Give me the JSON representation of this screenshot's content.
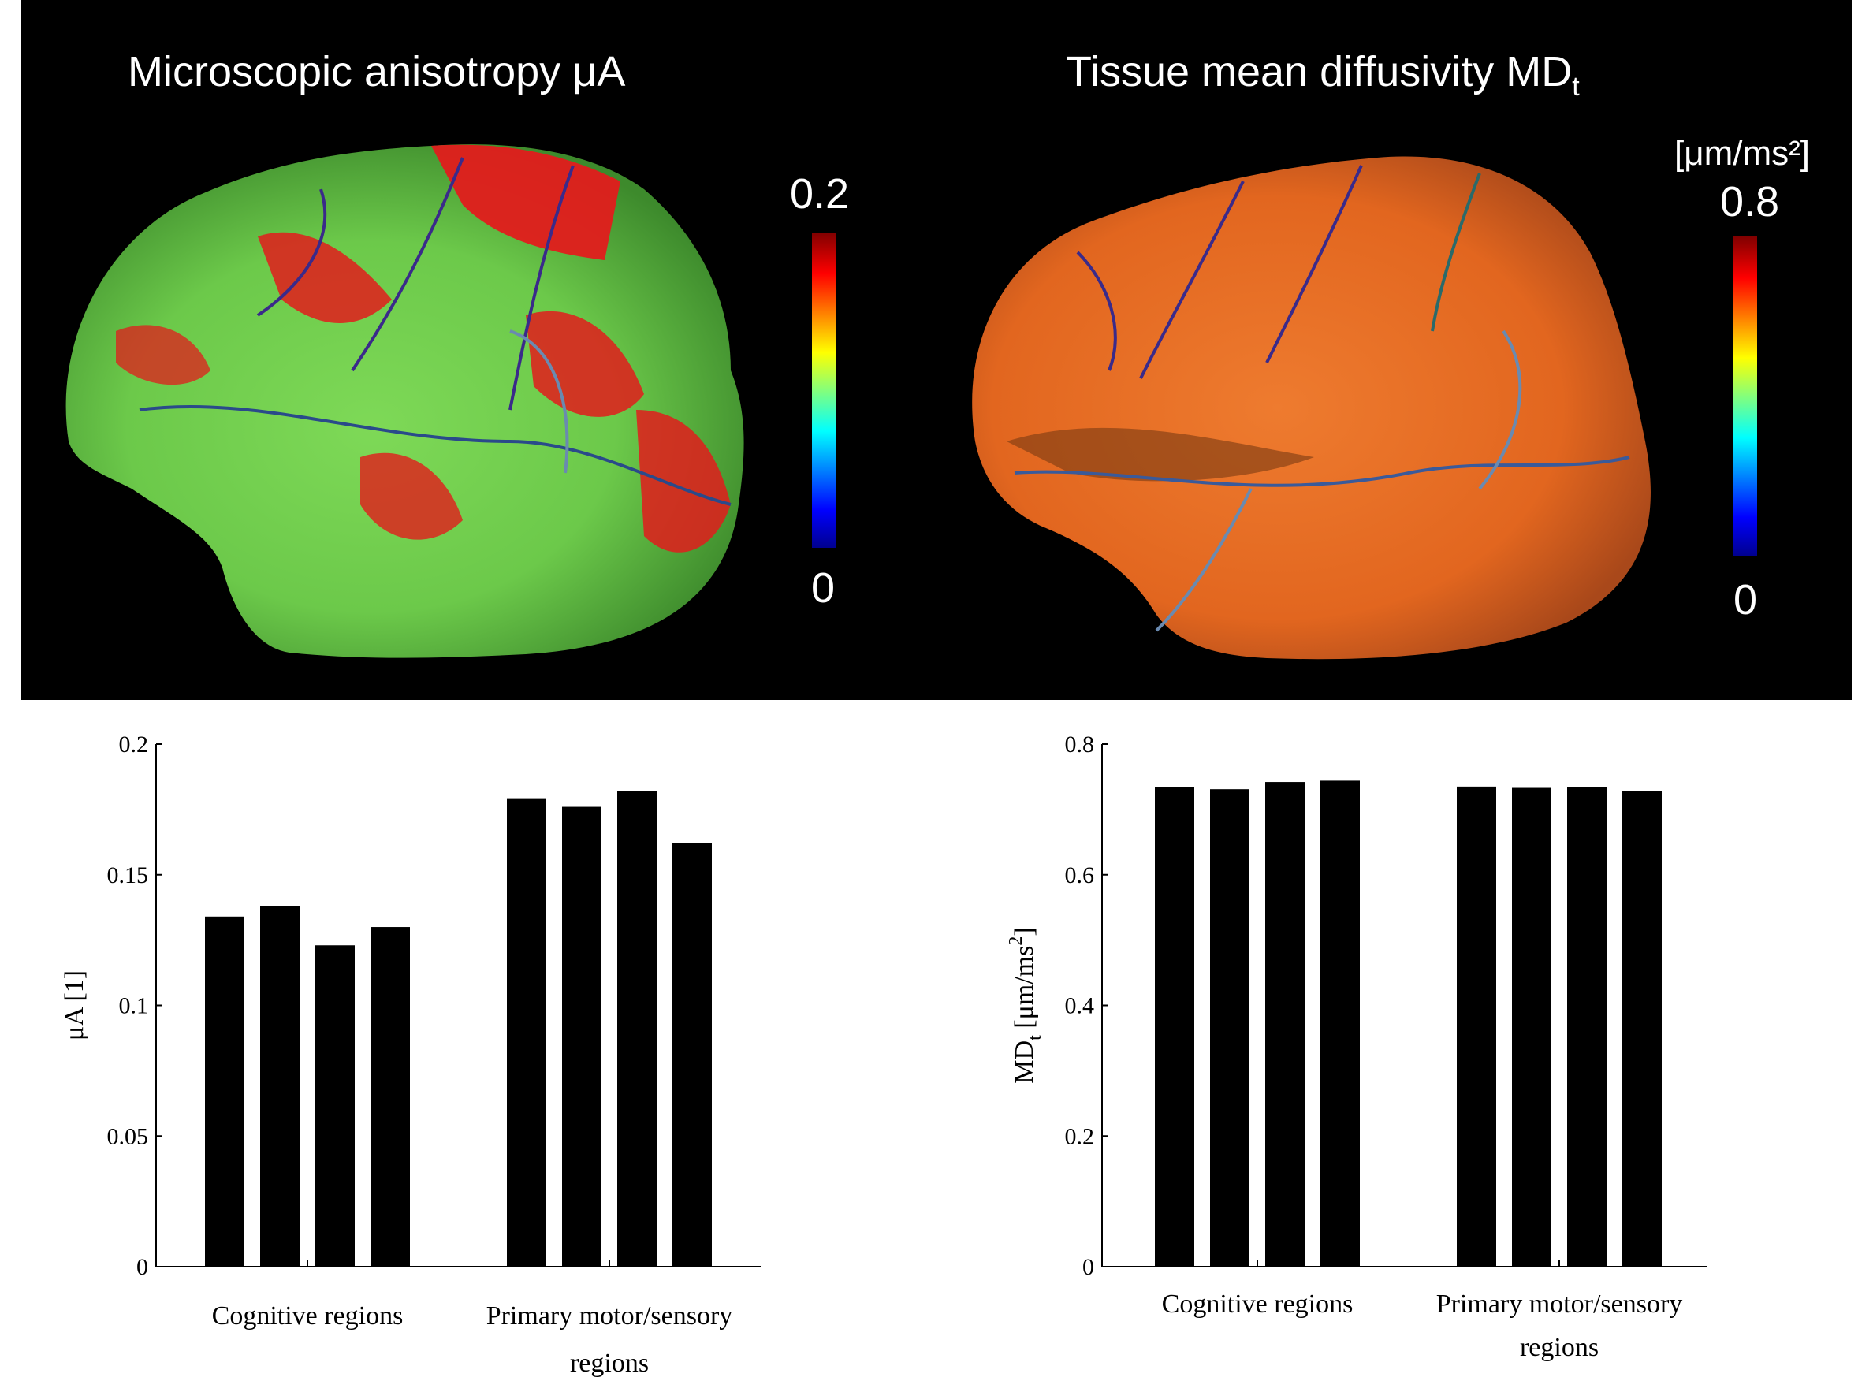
{
  "panels": {
    "left_title": "Microscopic anisotropy μA",
    "right_title_main": "Tissue mean diffusivity MD",
    "right_title_sub": "t",
    "left_colorbar": {
      "max_label": "0.2",
      "min_label": "0"
    },
    "right_colorbar": {
      "unit_label": "[μm/ms²]",
      "max_label": "0.8",
      "min_label": "0"
    }
  },
  "chart_data": [
    {
      "type": "bar",
      "title": "",
      "categories": [
        "Cognitive regions",
        "Primary motor/sensory regions"
      ],
      "category_lines": [
        [
          "Cognitive regions"
        ],
        [
          "Primary motor/sensory",
          "regions"
        ]
      ],
      "values": [
        [
          0.134,
          0.138,
          0.123,
          0.13
        ],
        [
          0.179,
          0.176,
          0.182,
          0.162
        ]
      ],
      "ylabel": "μA [1]",
      "ylim": [
        0,
        0.2
      ],
      "yticks": [
        0,
        0.05,
        0.1,
        0.15,
        0.2
      ],
      "ytick_labels": [
        "0",
        "0.05",
        "0.1",
        "0.15",
        "0.2"
      ],
      "bar_color": "#000000"
    },
    {
      "type": "bar",
      "title": "",
      "categories": [
        "Cognitive regions",
        "Primary motor/sensory regions"
      ],
      "category_lines": [
        [
          "Cognitive regions"
        ],
        [
          "Primary motor/sensory",
          "regions"
        ]
      ],
      "values": [
        [
          0.734,
          0.731,
          0.742,
          0.744
        ],
        [
          0.735,
          0.733,
          0.734,
          0.728
        ]
      ],
      "ylabel_main": "MD",
      "ylabel_sub": "t",
      "ylabel_unit": " [μm/ms",
      "ylabel_sup": "2",
      "ylabel_close": "]",
      "ylim": [
        0,
        0.8
      ],
      "yticks": [
        0,
        0.2,
        0.4,
        0.6,
        0.8
      ],
      "ytick_labels": [
        "0",
        "0.2",
        "0.4",
        "0.6",
        "0.8"
      ],
      "bar_color": "#000000"
    }
  ]
}
